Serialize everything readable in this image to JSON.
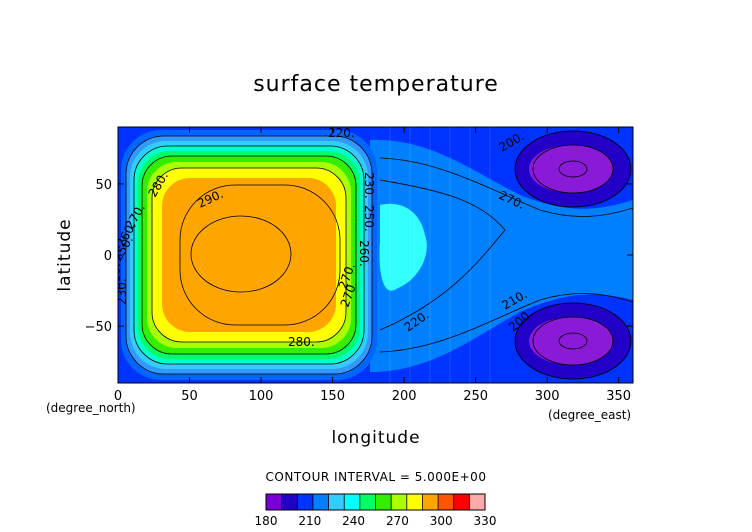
{
  "chart_data": {
    "type": "heatmap",
    "title": "surface temperature",
    "xlabel": "longitude",
    "ylabel": "latitude",
    "x_unit": "(degree_east)",
    "y_unit": "(degree_north)",
    "xlim": [
      0,
      360
    ],
    "ylim": [
      -90,
      90
    ],
    "x_ticks": [
      "0",
      "50",
      "100",
      "150",
      "200",
      "250",
      "300",
      "350"
    ],
    "y_ticks": [
      "50",
      "0",
      "−50"
    ],
    "contour_interval_text": "CONTOUR INTERVAL = 5.000E+00",
    "contour_labels": [
      "220.",
      "230.",
      "250.",
      "260.",
      "270.",
      "280.",
      "290.",
      "280.",
      "270.",
      "260.",
      "250.",
      "220.",
      "200.",
      "270.",
      "210.",
      "200.",
      "210.",
      "230.",
      "270."
    ],
    "colorbar": {
      "min": 180,
      "max": 330,
      "step": 15,
      "tick_labels": [
        "180",
        "210",
        "240",
        "270",
        "300",
        "330"
      ],
      "colors": [
        "#7a00d8",
        "#2300c8",
        "#0033ff",
        "#0080ff",
        "#33ccff",
        "#00ffff",
        "#00ff66",
        "#33ee00",
        "#aaff00",
        "#ffff00",
        "#ffa500",
        "#ff5500",
        "#ff0000",
        "#ffaaaa"
      ]
    },
    "features": {
      "warm_pool": {
        "center_lon": 90,
        "center_lat": 0,
        "max": 295
      },
      "cold_spots": [
        {
          "center_lon": 315,
          "center_lat": 60,
          "min": 195
        },
        {
          "center_lon": 315,
          "center_lat": -60,
          "min": 195
        }
      ],
      "background_east": 225
    },
    "grid": false
  }
}
